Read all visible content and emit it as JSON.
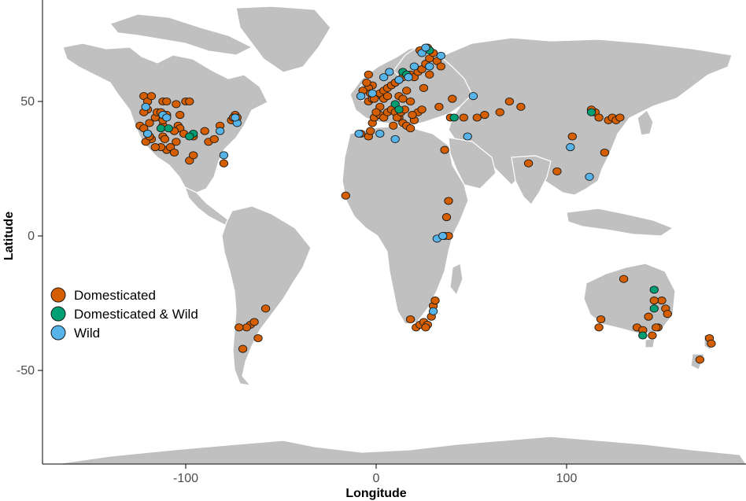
{
  "chart_data": {
    "type": "scatter",
    "xlabel": "Longitude",
    "ylabel": "Latitude",
    "xlim": [
      -180,
      190
    ],
    "ylim": [
      -85,
      90
    ],
    "x_ticks": [
      -100,
      0,
      100
    ],
    "y_ticks": [
      -50,
      0,
      50
    ],
    "grid": false,
    "legend": {
      "placement": "left-middle",
      "entries": [
        {
          "label": "Domesticated",
          "color": "#d55e00"
        },
        {
          "label": "Domesticated & Wild",
          "color": "#009e73"
        },
        {
          "label": "Wild",
          "color": "#56b4e9"
        }
      ]
    },
    "series": [
      {
        "name": "Domesticated",
        "color": "#d55e00",
        "points": [
          [
            -122,
            52
          ],
          [
            -120,
            50
          ],
          [
            -118,
            52
          ],
          [
            -112,
            50
          ],
          [
            -110,
            50
          ],
          [
            -105,
            49
          ],
          [
            -100,
            50
          ],
          [
            -98,
            50
          ],
          [
            -124,
            41
          ],
          [
            -122,
            40
          ],
          [
            -120,
            38
          ],
          [
            -118,
            36
          ],
          [
            -121,
            35
          ],
          [
            -119,
            42
          ],
          [
            -116,
            44
          ],
          [
            -112,
            41
          ],
          [
            -112,
            37
          ],
          [
            -110,
            32
          ],
          [
            -108,
            33
          ],
          [
            -106,
            31
          ],
          [
            -105,
            35
          ],
          [
            -104,
            41
          ],
          [
            -103,
            40
          ],
          [
            -101,
            38
          ],
          [
            -96,
            37
          ],
          [
            -90,
            39
          ],
          [
            -88,
            35
          ],
          [
            -85,
            36
          ],
          [
            -82,
            41
          ],
          [
            -76,
            43
          ],
          [
            -74,
            45
          ],
          [
            -73,
            44
          ],
          [
            -75,
            44
          ],
          [
            -80,
            27
          ],
          [
            -98,
            28
          ],
          [
            -96,
            30
          ],
          [
            -113,
            33
          ],
          [
            -111,
            36
          ],
          [
            -110,
            45
          ],
          [
            -115,
            46
          ],
          [
            -120,
            47
          ],
          [
            -122,
            46
          ],
          [
            -112,
            43
          ],
          [
            -106,
            39
          ],
          [
            -103,
            45
          ],
          [
            -113,
            46
          ],
          [
            -119,
            37
          ],
          [
            -116,
            33
          ],
          [
            -16,
            15
          ],
          [
            -8,
            38
          ],
          [
            -4,
            37
          ],
          [
            -3,
            39
          ],
          [
            -2,
            42
          ],
          [
            -1,
            44
          ],
          [
            2,
            45
          ],
          [
            4,
            44
          ],
          [
            6,
            46
          ],
          [
            8,
            47
          ],
          [
            10,
            46
          ],
          [
            12,
            44
          ],
          [
            14,
            42
          ],
          [
            16,
            41
          ],
          [
            18,
            40
          ],
          [
            20,
            43
          ],
          [
            22,
            46
          ],
          [
            24,
            47
          ],
          [
            -4,
            50
          ],
          [
            -2,
            51
          ],
          [
            0,
            52
          ],
          [
            2,
            53
          ],
          [
            4,
            54
          ],
          [
            6,
            55
          ],
          [
            8,
            56
          ],
          [
            10,
            57
          ],
          [
            12,
            58
          ],
          [
            14,
            59
          ],
          [
            16,
            60
          ],
          [
            18,
            60
          ],
          [
            20,
            59
          ],
          [
            22,
            61
          ],
          [
            24,
            62
          ],
          [
            26,
            64
          ],
          [
            28,
            66
          ],
          [
            30,
            68
          ],
          [
            32,
            65
          ],
          [
            34,
            63
          ],
          [
            -2,
            56
          ],
          [
            -4,
            55
          ],
          [
            -3,
            53
          ],
          [
            -1,
            51
          ],
          [
            4,
            51
          ],
          [
            6,
            52
          ],
          [
            12,
            52
          ],
          [
            14,
            51
          ],
          [
            16,
            54
          ],
          [
            18,
            50
          ],
          [
            19,
            45
          ],
          [
            9,
            41
          ],
          [
            11,
            44
          ],
          [
            13,
            46
          ],
          [
            15,
            47
          ],
          [
            25,
            55
          ],
          [
            28,
            60
          ],
          [
            23,
            69
          ],
          [
            27,
            70
          ],
          [
            36,
            32
          ],
          [
            38,
            13
          ],
          [
            37,
            7
          ],
          [
            36,
            0
          ],
          [
            38,
            0
          ],
          [
            -4,
            60
          ],
          [
            -7,
            54
          ],
          [
            -5,
            57
          ],
          [
            2,
            48
          ],
          [
            0,
            46
          ],
          [
            46,
            44
          ],
          [
            53,
            44
          ],
          [
            57,
            45
          ],
          [
            65,
            46
          ],
          [
            70,
            50
          ],
          [
            76,
            48
          ],
          [
            80,
            27
          ],
          [
            95,
            24
          ],
          [
            103,
            37
          ],
          [
            120,
            31
          ],
          [
            122,
            43
          ],
          [
            124,
            44
          ],
          [
            126,
            43
          ],
          [
            128,
            44
          ],
          [
            115,
            46
          ],
          [
            117,
            44
          ],
          [
            113,
            47
          ],
          [
            130,
            -16
          ],
          [
            118,
            -31
          ],
          [
            117,
            -34
          ],
          [
            137,
            -34
          ],
          [
            140,
            -35
          ],
          [
            143,
            -30
          ],
          [
            145,
            -37
          ],
          [
            148,
            -34
          ],
          [
            150,
            -24
          ],
          [
            152,
            -27
          ],
          [
            153,
            -29
          ],
          [
            146,
            -24
          ],
          [
            147,
            -34
          ],
          [
            175,
            -38
          ],
          [
            176,
            -40
          ],
          [
            170,
            -46
          ],
          [
            18,
            -31
          ],
          [
            21,
            -34
          ],
          [
            23,
            -33
          ],
          [
            25,
            -32
          ],
          [
            27,
            -33
          ],
          [
            29,
            -30
          ],
          [
            30,
            -26
          ],
          [
            31,
            -24
          ],
          [
            26,
            -34
          ],
          [
            -58,
            -27
          ],
          [
            -66,
            -33
          ],
          [
            -68,
            -34
          ],
          [
            -64,
            -32
          ],
          [
            -70,
            -42
          ],
          [
            -72,
            -34
          ],
          [
            -62,
            -38
          ],
          [
            40,
            51
          ],
          [
            39,
            44
          ],
          [
            33,
            48
          ]
        ]
      },
      {
        "name": "Domesticated & Wild",
        "color": "#009e73",
        "points": [
          [
            -113,
            40
          ],
          [
            -109,
            40
          ],
          [
            -96,
            38
          ],
          [
            -98,
            37
          ],
          [
            10,
            49
          ],
          [
            12,
            47
          ],
          [
            14,
            61
          ],
          [
            16,
            60
          ],
          [
            28,
            69
          ],
          [
            41,
            44
          ],
          [
            113,
            46
          ],
          [
            146,
            -27
          ],
          [
            146,
            -20
          ],
          [
            140,
            -37
          ]
        ]
      },
      {
        "name": "Wild",
        "color": "#56b4e9",
        "points": [
          [
            -121,
            48
          ],
          [
            -120,
            38
          ],
          [
            -112,
            45
          ],
          [
            -110,
            44
          ],
          [
            -82,
            39
          ],
          [
            -80,
            30
          ],
          [
            -73,
            42
          ],
          [
            -74,
            44
          ],
          [
            -8,
            52
          ],
          [
            -2,
            53
          ],
          [
            4,
            59
          ],
          [
            7,
            61
          ],
          [
            12,
            58
          ],
          [
            17,
            59
          ],
          [
            20,
            63
          ],
          [
            24,
            68
          ],
          [
            26,
            70
          ],
          [
            28,
            63
          ],
          [
            34,
            67
          ],
          [
            51,
            52
          ],
          [
            48,
            37
          ],
          [
            10,
            36
          ],
          [
            32,
            -1
          ],
          [
            35,
            0
          ],
          [
            30,
            -28
          ],
          [
            102,
            33
          ],
          [
            112,
            22
          ],
          [
            -9,
            38
          ],
          [
            2,
            38
          ]
        ]
      }
    ]
  }
}
